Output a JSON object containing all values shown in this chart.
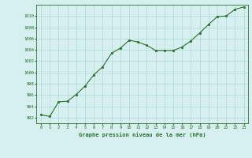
{
  "x": [
    0,
    1,
    2,
    3,
    4,
    5,
    6,
    7,
    8,
    9,
    10,
    11,
    12,
    13,
    14,
    15,
    16,
    17,
    18,
    19,
    20,
    21,
    22,
    23
  ],
  "y": [
    992.5,
    992.2,
    994.8,
    994.9,
    996.1,
    997.6,
    999.6,
    1001.0,
    1003.4,
    1004.3,
    1005.7,
    1005.4,
    1004.8,
    1003.9,
    1003.9,
    1003.9,
    1004.5,
    1005.6,
    1007.0,
    1008.5,
    1009.9,
    1010.0,
    1011.2,
    1011.6
  ],
  "ylim": [
    991,
    1012
  ],
  "yticks": [
    992,
    994,
    996,
    998,
    1000,
    1002,
    1004,
    1006,
    1008,
    1010
  ],
  "xticks": [
    0,
    1,
    2,
    3,
    4,
    5,
    6,
    7,
    8,
    9,
    10,
    11,
    12,
    13,
    14,
    15,
    16,
    17,
    18,
    19,
    20,
    21,
    22,
    23
  ],
  "xlabel": "Graphe pression niveau de la mer (hPa)",
  "line_color": "#2d6e2d",
  "marker_color": "#2d6e2d",
  "bg_color": "#d6f0f0",
  "grid_color": "#b0d8d8",
  "text_color": "#2d6e2d",
  "title_color": "#2d6e2d"
}
